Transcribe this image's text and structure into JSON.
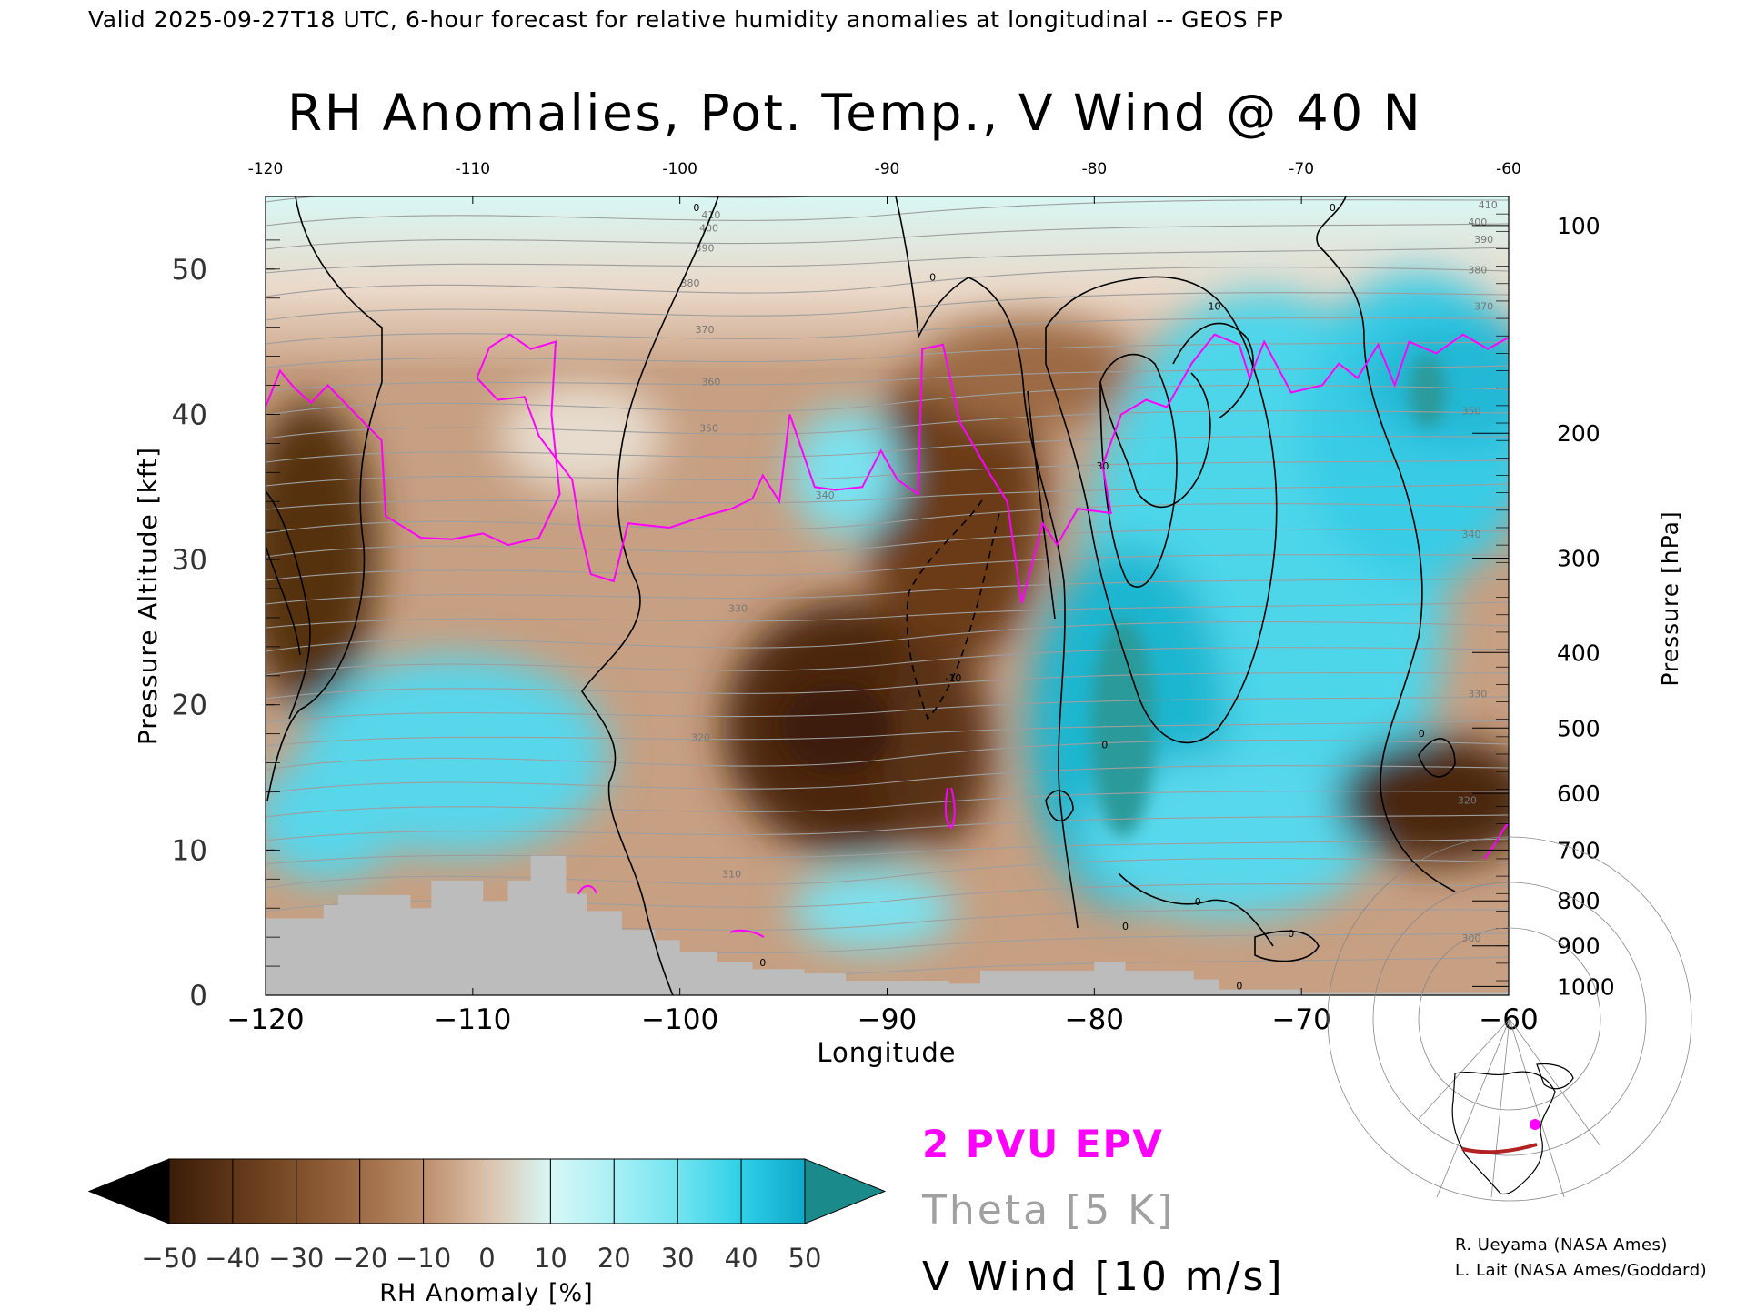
{
  "header": {
    "valid_line": "Valid 2025-09-27T18 UTC, 6-hour forecast for relative humidity anomalies at longitudinal -- GEOS FP",
    "title": "RH Anomalies, Pot. Temp., V Wind @ 40 N"
  },
  "credits": {
    "line1": "R. Ueyama (NASA Ames)",
    "line2": "L. Lait (NASA Ames/Goddard)"
  },
  "legend": {
    "epv": "2 PVU EPV",
    "theta": "Theta [5 K]",
    "vwind": "V Wind [10 m/s]"
  },
  "colors": {
    "epv": "#ff00ff",
    "theta": "#a0a0a0",
    "vwind": "#000000",
    "terrain": "#bcbcbc",
    "dry_extreme": "#000000",
    "moist_extreme": "#1a8a8a"
  },
  "chart_data": {
    "type": "heatmap",
    "title": "RH Anomalies, Pot. Temp., V Wind @ 40 N",
    "xlabel": "Longitude",
    "ylabel_left": "Pressure Altitude [kft]",
    "ylabel_right": "Pressure [hPa]",
    "xlim": [
      -120,
      -60
    ],
    "ylim": [
      0,
      55
    ],
    "x_ticks": [
      -120,
      -110,
      -100,
      -90,
      -80,
      -70,
      -60
    ],
    "x_tick_labels_bottom": [
      "−120",
      "−110",
      "−100",
      "−90",
      "−80",
      "−70",
      "−60"
    ],
    "x_tick_labels_top": [
      "-120",
      "-110",
      "-100",
      "-90",
      "-80",
      "-70",
      "-60"
    ],
    "y_ticks_left": [
      0,
      10,
      20,
      30,
      40,
      50
    ],
    "y_tick_labels_left": [
      "0",
      "10",
      "20",
      "30",
      "40",
      "50"
    ],
    "pressure_ticks": [
      {
        "label": "100",
        "kft": 53.0
      },
      {
        "label": "200",
        "kft": 38.7
      },
      {
        "label": "300",
        "kft": 30.1
      },
      {
        "label": "400",
        "kft": 23.6
      },
      {
        "label": "500",
        "kft": 18.4
      },
      {
        "label": "600",
        "kft": 13.9
      },
      {
        "label": "700",
        "kft": 10.0
      },
      {
        "label": "800",
        "kft": 6.5
      },
      {
        "label": "900",
        "kft": 3.4
      },
      {
        "label": "1000",
        "kft": 0.6
      }
    ],
    "colorbar": {
      "label": "RH Anomaly [%]",
      "levels": [
        -50,
        -40,
        -30,
        -20,
        -10,
        0,
        10,
        20,
        30,
        40,
        50
      ],
      "tick_labels": [
        "−50",
        "−40",
        "−30",
        "−20",
        "−10",
        "0",
        "10",
        "20",
        "30",
        "40",
        "50"
      ],
      "colors": [
        "#3a1d08",
        "#5e3517",
        "#7e4f2a",
        "#9d6b44",
        "#bb8d6b",
        "#dcc1aa",
        "#d8f7f7",
        "#a8f0f5",
        "#72e4f0",
        "#2fd0e8",
        "#0ea8c8"
      ],
      "extend": "both"
    },
    "theta_labels": [
      {
        "v": "410",
        "lon": -98.5,
        "kft": 53.5
      },
      {
        "v": "400",
        "lon": -98.6,
        "kft": 52.6
      },
      {
        "v": "390",
        "lon": -98.8,
        "kft": 51.2
      },
      {
        "v": "380",
        "lon": -99.5,
        "kft": 48.8
      },
      {
        "v": "370",
        "lon": -98.8,
        "kft": 45.6
      },
      {
        "v": "360",
        "lon": -98.5,
        "kft": 42.0
      },
      {
        "v": "350",
        "lon": -98.6,
        "kft": 38.8
      },
      {
        "v": "340",
        "lon": -93.0,
        "kft": 34.2
      },
      {
        "v": "330",
        "lon": -97.2,
        "kft": 26.4
      },
      {
        "v": "320",
        "lon": -99.0,
        "kft": 17.5
      },
      {
        "v": "310",
        "lon": -97.5,
        "kft": 8.1
      },
      {
        "v": "410",
        "lon": -61.0,
        "kft": 54.2
      },
      {
        "v": "400",
        "lon": -61.5,
        "kft": 53.0
      },
      {
        "v": "390",
        "lon": -61.2,
        "kft": 51.8
      },
      {
        "v": "380",
        "lon": -61.5,
        "kft": 49.7
      },
      {
        "v": "370",
        "lon": -61.2,
        "kft": 47.2
      },
      {
        "v": "350",
        "lon": -61.8,
        "kft": 40.0
      },
      {
        "v": "340",
        "lon": -61.8,
        "kft": 31.5
      },
      {
        "v": "330",
        "lon": -61.5,
        "kft": 20.5
      },
      {
        "v": "320",
        "lon": -62.0,
        "kft": 13.2
      },
      {
        "v": "300",
        "lon": -61.8,
        "kft": 3.7
      }
    ],
    "wind_labels": [
      {
        "v": "0",
        "lon": -99.2,
        "kft": 54.0
      },
      {
        "v": "0",
        "lon": -87.8,
        "kft": 49.2
      },
      {
        "v": "10",
        "lon": -74.2,
        "kft": 47.2
      },
      {
        "v": "0",
        "lon": -68.5,
        "kft": 54.0
      },
      {
        "v": "30",
        "lon": -79.6,
        "kft": 36.2
      },
      {
        "v": "-10",
        "lon": -86.8,
        "kft": 21.6
      },
      {
        "v": "0",
        "lon": -79.5,
        "kft": 17.0
      },
      {
        "v": "0",
        "lon": -64.2,
        "kft": 17.8
      },
      {
        "v": "0",
        "lon": -75.0,
        "kft": 6.2
      },
      {
        "v": "0",
        "lon": -96.0,
        "kft": 2.0
      },
      {
        "v": "0",
        "lon": -78.5,
        "kft": 4.5
      },
      {
        "v": "0",
        "lon": -70.5,
        "kft": 4.0
      },
      {
        "v": "0",
        "lon": -73.0,
        "kft": 0.4
      }
    ],
    "terrain_profile": [
      {
        "lon": -120.0,
        "kft": 5.3
      },
      {
        "lon": -117.2,
        "kft": 6.2
      },
      {
        "lon": -116.5,
        "kft": 6.9
      },
      {
        "lon": -113.0,
        "kft": 6.0
      },
      {
        "lon": -112.0,
        "kft": 7.9
      },
      {
        "lon": -109.5,
        "kft": 6.5
      },
      {
        "lon": -108.3,
        "kft": 7.9
      },
      {
        "lon": -107.2,
        "kft": 9.6
      },
      {
        "lon": -105.5,
        "kft": 7.0
      },
      {
        "lon": -104.5,
        "kft": 5.8
      },
      {
        "lon": -102.8,
        "kft": 4.5
      },
      {
        "lon": -101.2,
        "kft": 3.8
      },
      {
        "lon": -100.0,
        "kft": 3.0
      },
      {
        "lon": -98.2,
        "kft": 2.3
      },
      {
        "lon": -96.5,
        "kft": 1.8
      },
      {
        "lon": -94.0,
        "kft": 1.5
      },
      {
        "lon": -92.0,
        "kft": 1.0
      },
      {
        "lon": -87.0,
        "kft": 0.8
      },
      {
        "lon": -85.5,
        "kft": 1.7
      },
      {
        "lon": -80.0,
        "kft": 2.3
      },
      {
        "lon": -78.5,
        "kft": 1.7
      },
      {
        "lon": -75.2,
        "kft": 1.1
      },
      {
        "lon": -74.0,
        "kft": 0.4
      },
      {
        "lon": -70.0,
        "kft": 0.2
      },
      {
        "lon": -60.0,
        "kft": 0.1
      }
    ],
    "epv_2pvu": [
      {
        "lon": -120.0,
        "kft": 40.5
      },
      {
        "lon": -119.3,
        "kft": 43.0
      },
      {
        "lon": -118.6,
        "kft": 41.8
      },
      {
        "lon": -117.8,
        "kft": 40.8
      },
      {
        "lon": -117.0,
        "kft": 42.0
      },
      {
        "lon": -115.5,
        "kft": 39.8
      },
      {
        "lon": -114.4,
        "kft": 38.2
      },
      {
        "lon": -114.2,
        "kft": 33.0
      },
      {
        "lon": -112.5,
        "kft": 31.5
      },
      {
        "lon": -111.0,
        "kft": 31.4
      },
      {
        "lon": -109.5,
        "kft": 31.8
      },
      {
        "lon": -108.3,
        "kft": 31.0
      },
      {
        "lon": -106.8,
        "kft": 31.5
      },
      {
        "lon": -105.8,
        "kft": 34.5
      },
      {
        "lon": -106.2,
        "kft": 40.0
      },
      {
        "lon": -106.0,
        "kft": 45.0
      },
      {
        "lon": -107.2,
        "kft": 44.5
      },
      {
        "lon": -108.2,
        "kft": 45.5
      },
      {
        "lon": -109.2,
        "kft": 44.6
      },
      {
        "lon": -109.8,
        "kft": 42.5
      },
      {
        "lon": -108.8,
        "kft": 41.0
      },
      {
        "lon": -107.5,
        "kft": 41.2
      },
      {
        "lon": -106.8,
        "kft": 38.5
      },
      {
        "lon": -105.2,
        "kft": 35.5
      },
      {
        "lon": -104.8,
        "kft": 32.0
      },
      {
        "lon": -104.3,
        "kft": 29.0
      },
      {
        "lon": -103.2,
        "kft": 28.5
      },
      {
        "lon": -102.5,
        "kft": 32.5
      },
      {
        "lon": -100.5,
        "kft": 32.2
      },
      {
        "lon": -98.8,
        "kft": 33.0
      },
      {
        "lon": -97.5,
        "kft": 33.5
      },
      {
        "lon": -96.5,
        "kft": 34.2
      },
      {
        "lon": -96.0,
        "kft": 35.8
      },
      {
        "lon": -95.2,
        "kft": 34.0
      },
      {
        "lon": -94.7,
        "kft": 40.0
      },
      {
        "lon": -93.5,
        "kft": 35.0
      },
      {
        "lon": -92.5,
        "kft": 34.8
      },
      {
        "lon": -91.2,
        "kft": 35.0
      },
      {
        "lon": -90.3,
        "kft": 37.5
      },
      {
        "lon": -89.5,
        "kft": 35.5
      },
      {
        "lon": -88.5,
        "kft": 34.5
      },
      {
        "lon": -88.3,
        "kft": 44.5
      },
      {
        "lon": -87.3,
        "kft": 44.8
      },
      {
        "lon": -86.5,
        "kft": 39.5
      },
      {
        "lon": -85.0,
        "kft": 35.8
      },
      {
        "lon": -84.2,
        "kft": 34.0
      },
      {
        "lon": -83.5,
        "kft": 27.0
      },
      {
        "lon": -82.5,
        "kft": 32.5
      },
      {
        "lon": -81.8,
        "kft": 31.0
      },
      {
        "lon": -80.8,
        "kft": 33.5
      },
      {
        "lon": -79.2,
        "kft": 33.2
      },
      {
        "lon": -79.6,
        "kft": 36.5
      },
      {
        "lon": -78.7,
        "kft": 40.0
      },
      {
        "lon": -77.5,
        "kft": 41.0
      },
      {
        "lon": -76.5,
        "kft": 40.5
      },
      {
        "lon": -75.3,
        "kft": 43.5
      },
      {
        "lon": -74.2,
        "kft": 45.5
      },
      {
        "lon": -73.0,
        "kft": 44.8
      },
      {
        "lon": -72.5,
        "kft": 42.5
      },
      {
        "lon": -71.8,
        "kft": 45.0
      },
      {
        "lon": -70.5,
        "kft": 41.5
      },
      {
        "lon": -69.0,
        "kft": 42.0
      },
      {
        "lon": -68.2,
        "kft": 43.5
      },
      {
        "lon": -67.3,
        "kft": 42.5
      },
      {
        "lon": -66.3,
        "kft": 44.8
      },
      {
        "lon": -65.5,
        "kft": 42.0
      },
      {
        "lon": -64.8,
        "kft": 45.0
      },
      {
        "lon": -63.5,
        "kft": 44.2
      },
      {
        "lon": -62.2,
        "kft": 45.5
      },
      {
        "lon": -61.0,
        "kft": 44.5
      },
      {
        "lon": -60.0,
        "kft": 45.3
      }
    ]
  }
}
